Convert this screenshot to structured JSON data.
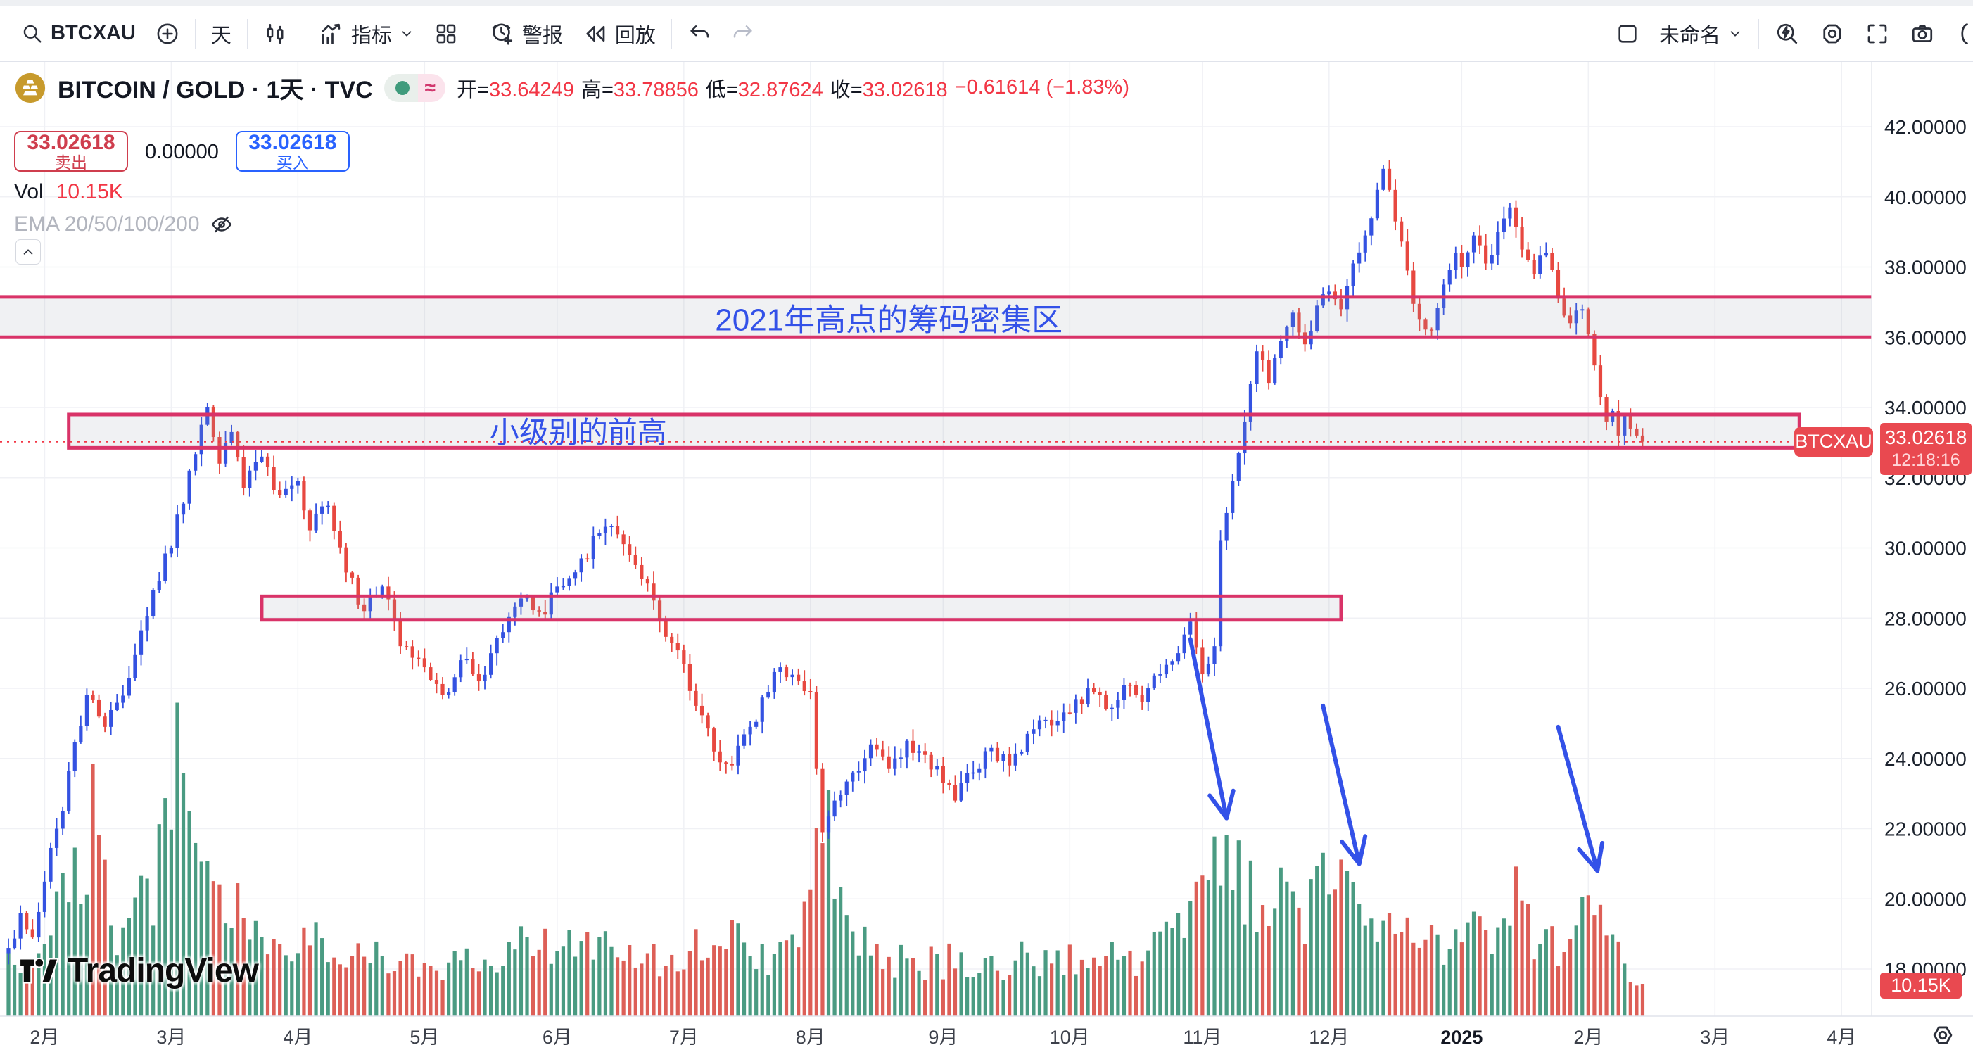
{
  "toolbar": {
    "symbol_search": "BTCXAU",
    "interval": "天",
    "indicators_label": "指标",
    "alert_label": "警报",
    "replay_label": "回放",
    "layout_name": "未命名"
  },
  "symbol_info": {
    "title": "BITCOIN / GOLD · 1天 · TVC",
    "approx_badge": "≈",
    "open_label": "开=",
    "open": "33.64249",
    "high_label": "高=",
    "high": "33.78856",
    "low_label": "低=",
    "low": "32.87624",
    "close_label": "收=",
    "close": "33.02618",
    "change": "−0.61614 (−1.83%)"
  },
  "trade_panel": {
    "sell_price": "33.02618",
    "sell_label": "卖出",
    "spread": "0.00000",
    "buy_price": "33.02618",
    "buy_label": "买入"
  },
  "legend": {
    "vol_label": "Vol",
    "vol_value": "10.15K",
    "ema_label": "EMA 20/50/100/200"
  },
  "price_label": {
    "symbol": "BTCXAU",
    "price": "33.02618",
    "time": "12:18:16"
  },
  "volume_axis_label": "10.15K",
  "watermark": "TradingView",
  "colors": {
    "up": "#3452e1",
    "down": "#e74840",
    "vol_up": "#4a9b82",
    "vol_down": "#dd5f57",
    "pink": "#d93368",
    "blue": "#3351e8",
    "red_text": "#f23645",
    "red_label": "#e94950",
    "grid": "#f0f1f5",
    "axis_text": "#1b222d",
    "zone_fill": "rgba(150,155,168,0.14)"
  },
  "chart_data": {
    "type": "candlestick_with_volume",
    "symbol": "BTCXAU",
    "title": "BITCOIN / GOLD",
    "interval": "1天",
    "exchange": "TVC",
    "last_price": 33.02618,
    "last_time": "12:18:16",
    "last_volume_k": 10.15,
    "ylim": [
      16.7,
      43.8
    ],
    "y_ticks": [
      42,
      40,
      38,
      36,
      34,
      32,
      30,
      28,
      26,
      24,
      22,
      20,
      18
    ],
    "y_tick_decimals": 5,
    "months": [
      {
        "label": "2月",
        "i": 6
      },
      {
        "label": "3月",
        "i": 27
      },
      {
        "label": "4月",
        "i": 48
      },
      {
        "label": "5月",
        "i": 69
      },
      {
        "label": "6月",
        "i": 91
      },
      {
        "label": "7月",
        "i": 112
      },
      {
        "label": "8月",
        "i": 133
      },
      {
        "label": "9月",
        "i": 155
      },
      {
        "label": "10月",
        "i": 176
      },
      {
        "label": "11月",
        "i": 198
      },
      {
        "label": "12月",
        "i": 219
      },
      {
        "label": "2025",
        "i": 241,
        "bold": true
      },
      {
        "label": "2月",
        "i": 262
      },
      {
        "label": "3月",
        "i": 283
      },
      {
        "label": "4月",
        "i": 304
      }
    ],
    "candle_count": 272,
    "price_keyframes": [
      [
        0,
        18.6
      ],
      [
        2,
        19.6
      ],
      [
        4,
        18.9
      ],
      [
        8,
        22.0
      ],
      [
        13,
        25.8
      ],
      [
        16,
        24.9
      ],
      [
        20,
        26.3
      ],
      [
        24,
        28.8
      ],
      [
        27,
        30.0
      ],
      [
        30,
        32.2
      ],
      [
        33,
        34.0
      ],
      [
        35,
        32.4
      ],
      [
        37,
        33.3
      ],
      [
        39,
        31.7
      ],
      [
        42,
        32.6
      ],
      [
        45,
        31.5
      ],
      [
        48,
        31.9
      ],
      [
        50,
        30.5
      ],
      [
        53,
        31.2
      ],
      [
        56,
        29.3
      ],
      [
        59,
        28.2
      ],
      [
        62,
        28.9
      ],
      [
        65,
        27.2
      ],
      [
        69,
        26.6
      ],
      [
        72,
        25.8
      ],
      [
        75,
        26.8
      ],
      [
        78,
        26.2
      ],
      [
        82,
        27.6
      ],
      [
        86,
        28.6
      ],
      [
        89,
        28.1
      ],
      [
        91,
        28.9
      ],
      [
        95,
        29.7
      ],
      [
        99,
        30.6
      ],
      [
        103,
        29.8
      ],
      [
        107,
        28.5
      ],
      [
        110,
        27.3
      ],
      [
        112,
        26.7
      ],
      [
        114,
        25.5
      ],
      [
        117,
        24.2
      ],
      [
        120,
        23.8
      ],
      [
        123,
        24.9
      ],
      [
        126,
        25.9
      ],
      [
        128,
        26.6
      ],
      [
        131,
        26.2
      ],
      [
        133,
        25.9
      ],
      [
        134,
        23.7
      ],
      [
        135,
        21.9
      ],
      [
        137,
        22.8
      ],
      [
        140,
        23.6
      ],
      [
        143,
        24.4
      ],
      [
        146,
        23.7
      ],
      [
        149,
        24.5
      ],
      [
        152,
        24.1
      ],
      [
        155,
        23.3
      ],
      [
        157,
        22.8
      ],
      [
        160,
        23.6
      ],
      [
        163,
        24.3
      ],
      [
        166,
        23.8
      ],
      [
        169,
        24.7
      ],
      [
        172,
        25.1
      ],
      [
        176,
        25.3
      ],
      [
        179,
        26.0
      ],
      [
        182,
        25.4
      ],
      [
        185,
        26.1
      ],
      [
        188,
        25.6
      ],
      [
        191,
        26.4
      ],
      [
        194,
        27.0
      ],
      [
        196,
        27.9
      ],
      [
        198,
        26.4
      ],
      [
        200,
        27.2
      ],
      [
        201,
        30.2
      ],
      [
        203,
        31.9
      ],
      [
        205,
        33.6
      ],
      [
        207,
        35.6
      ],
      [
        209,
        34.7
      ],
      [
        211,
        35.9
      ],
      [
        213,
        36.7
      ],
      [
        215,
        35.8
      ],
      [
        217,
        36.9
      ],
      [
        219,
        37.3
      ],
      [
        221,
        36.8
      ],
      [
        223,
        38.1
      ],
      [
        225,
        38.9
      ],
      [
        227,
        40.2
      ],
      [
        228,
        40.8
      ],
      [
        230,
        39.3
      ],
      [
        232,
        37.9
      ],
      [
        234,
        36.5
      ],
      [
        236,
        36.2
      ],
      [
        238,
        37.5
      ],
      [
        240,
        38.4
      ],
      [
        241,
        38.0
      ],
      [
        243,
        38.9
      ],
      [
        245,
        38.1
      ],
      [
        247,
        39.0
      ],
      [
        249,
        39.7
      ],
      [
        251,
        38.5
      ],
      [
        253,
        37.8
      ],
      [
        255,
        38.4
      ],
      [
        257,
        37.1
      ],
      [
        259,
        36.4
      ],
      [
        261,
        36.8
      ],
      [
        262,
        36.1
      ],
      [
        263,
        35.2
      ],
      [
        264,
        34.3
      ],
      [
        265,
        33.6
      ],
      [
        266,
        33.9
      ],
      [
        267,
        33.2
      ],
      [
        268,
        33.8
      ],
      [
        269,
        33.4
      ],
      [
        270,
        33.2
      ],
      [
        271,
        33.02618
      ]
    ],
    "volume_keyframes_k": [
      [
        0,
        18
      ],
      [
        5,
        22
      ],
      [
        8,
        30
      ],
      [
        12,
        48
      ],
      [
        14,
        63
      ],
      [
        17,
        28
      ],
      [
        20,
        32
      ],
      [
        24,
        42
      ],
      [
        28,
        75
      ],
      [
        31,
        55
      ],
      [
        34,
        46
      ],
      [
        40,
        28
      ],
      [
        46,
        22
      ],
      [
        52,
        24
      ],
      [
        58,
        20
      ],
      [
        64,
        18
      ],
      [
        70,
        16
      ],
      [
        76,
        18
      ],
      [
        82,
        20
      ],
      [
        88,
        22
      ],
      [
        94,
        20
      ],
      [
        100,
        24
      ],
      [
        106,
        18
      ],
      [
        112,
        20
      ],
      [
        118,
        24
      ],
      [
        126,
        18
      ],
      [
        130,
        22
      ],
      [
        133,
        34
      ],
      [
        135,
        66
      ],
      [
        138,
        30
      ],
      [
        144,
        20
      ],
      [
        150,
        16
      ],
      [
        156,
        18
      ],
      [
        162,
        16
      ],
      [
        168,
        18
      ],
      [
        174,
        16
      ],
      [
        180,
        20
      ],
      [
        186,
        18
      ],
      [
        192,
        22
      ],
      [
        196,
        34
      ],
      [
        199,
        42
      ],
      [
        201,
        54
      ],
      [
        204,
        46
      ],
      [
        207,
        40
      ],
      [
        211,
        36
      ],
      [
        215,
        30
      ],
      [
        219,
        44
      ],
      [
        223,
        32
      ],
      [
        227,
        36
      ],
      [
        230,
        28
      ],
      [
        234,
        24
      ],
      [
        238,
        22
      ],
      [
        242,
        24
      ],
      [
        246,
        26
      ],
      [
        249,
        42
      ],
      [
        253,
        26
      ],
      [
        257,
        24
      ],
      [
        260,
        30
      ],
      [
        263,
        46
      ],
      [
        266,
        20
      ],
      [
        269,
        14
      ],
      [
        271,
        10.15
      ]
    ],
    "zones": [
      {
        "name": "band",
        "label": "2021年高点的筹码密集区",
        "price_high": 37.15,
        "price_low": 36.0,
        "full_width": true,
        "label_center_i": 146,
        "label_price": 36.5
      },
      {
        "name": "box-prior-high",
        "label": "小级别的前高",
        "price_high": 33.8,
        "price_low": 32.85,
        "i0": 10,
        "i1": 297,
        "label_center_i": 94.5,
        "label_price": 33.3
      },
      {
        "name": "box-support",
        "label": "",
        "price_high": 28.62,
        "price_low": 27.95,
        "i0": 42,
        "i1": 221
      }
    ],
    "current_price_line": 33.02618,
    "arrows": [
      {
        "i0": 196,
        "p0": 27.4,
        "i1": 202,
        "p1": 22.3
      },
      {
        "i0": 218,
        "p0": 25.5,
        "i1": 224,
        "p1": 21.0
      },
      {
        "i0": 257,
        "p0": 24.9,
        "i1": 263.5,
        "p1": 20.8
      }
    ]
  }
}
